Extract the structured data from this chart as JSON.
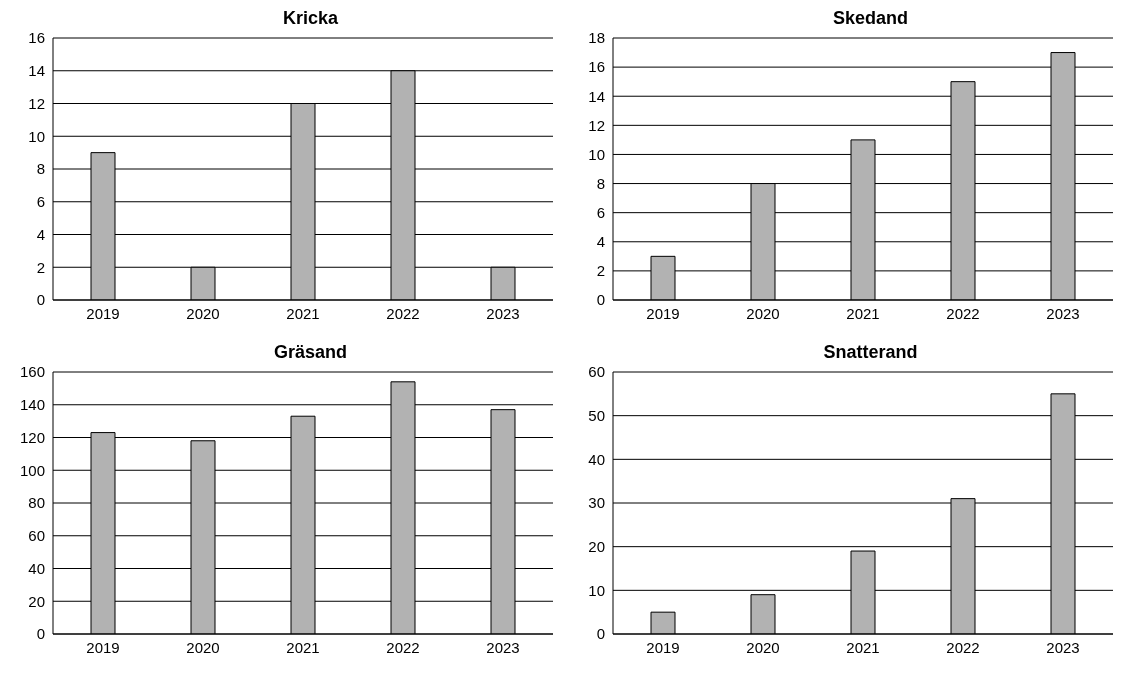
{
  "chart_data": [
    {
      "type": "bar",
      "title": "Kricka",
      "categories": [
        "2019",
        "2020",
        "2021",
        "2022",
        "2023"
      ],
      "values": [
        9,
        2,
        12,
        14,
        2
      ],
      "color": "#b2b2b2",
      "ylim": [
        0,
        16
      ],
      "yticks": [
        0,
        2,
        4,
        6,
        8,
        10,
        12,
        14,
        16
      ],
      "grid": "y"
    },
    {
      "type": "bar",
      "title": "Skedand",
      "categories": [
        "2019",
        "2020",
        "2021",
        "2022",
        "2023"
      ],
      "values": [
        3,
        8,
        11,
        15,
        17
      ],
      "color": "#b2b2b2",
      "ylim": [
        0,
        18
      ],
      "yticks": [
        0,
        2,
        4,
        6,
        8,
        10,
        12,
        14,
        16,
        18
      ],
      "grid": "y"
    },
    {
      "type": "bar",
      "title": "Gräsand",
      "categories": [
        "2019",
        "2020",
        "2021",
        "2022",
        "2023"
      ],
      "values": [
        123,
        118,
        133,
        154,
        137
      ],
      "color": "#b2b2b2",
      "ylim": [
        0,
        160
      ],
      "yticks": [
        0,
        20,
        40,
        60,
        80,
        100,
        120,
        140,
        160
      ],
      "grid": "y"
    },
    {
      "type": "bar",
      "title": "Snatterand",
      "categories": [
        "2019",
        "2020",
        "2021",
        "2022",
        "2023"
      ],
      "values": [
        5,
        9,
        19,
        31,
        55
      ],
      "color": "#b2b2b2",
      "ylim": [
        0,
        60
      ],
      "yticks": [
        0,
        10,
        20,
        30,
        40,
        50,
        60
      ],
      "grid": "y"
    }
  ]
}
